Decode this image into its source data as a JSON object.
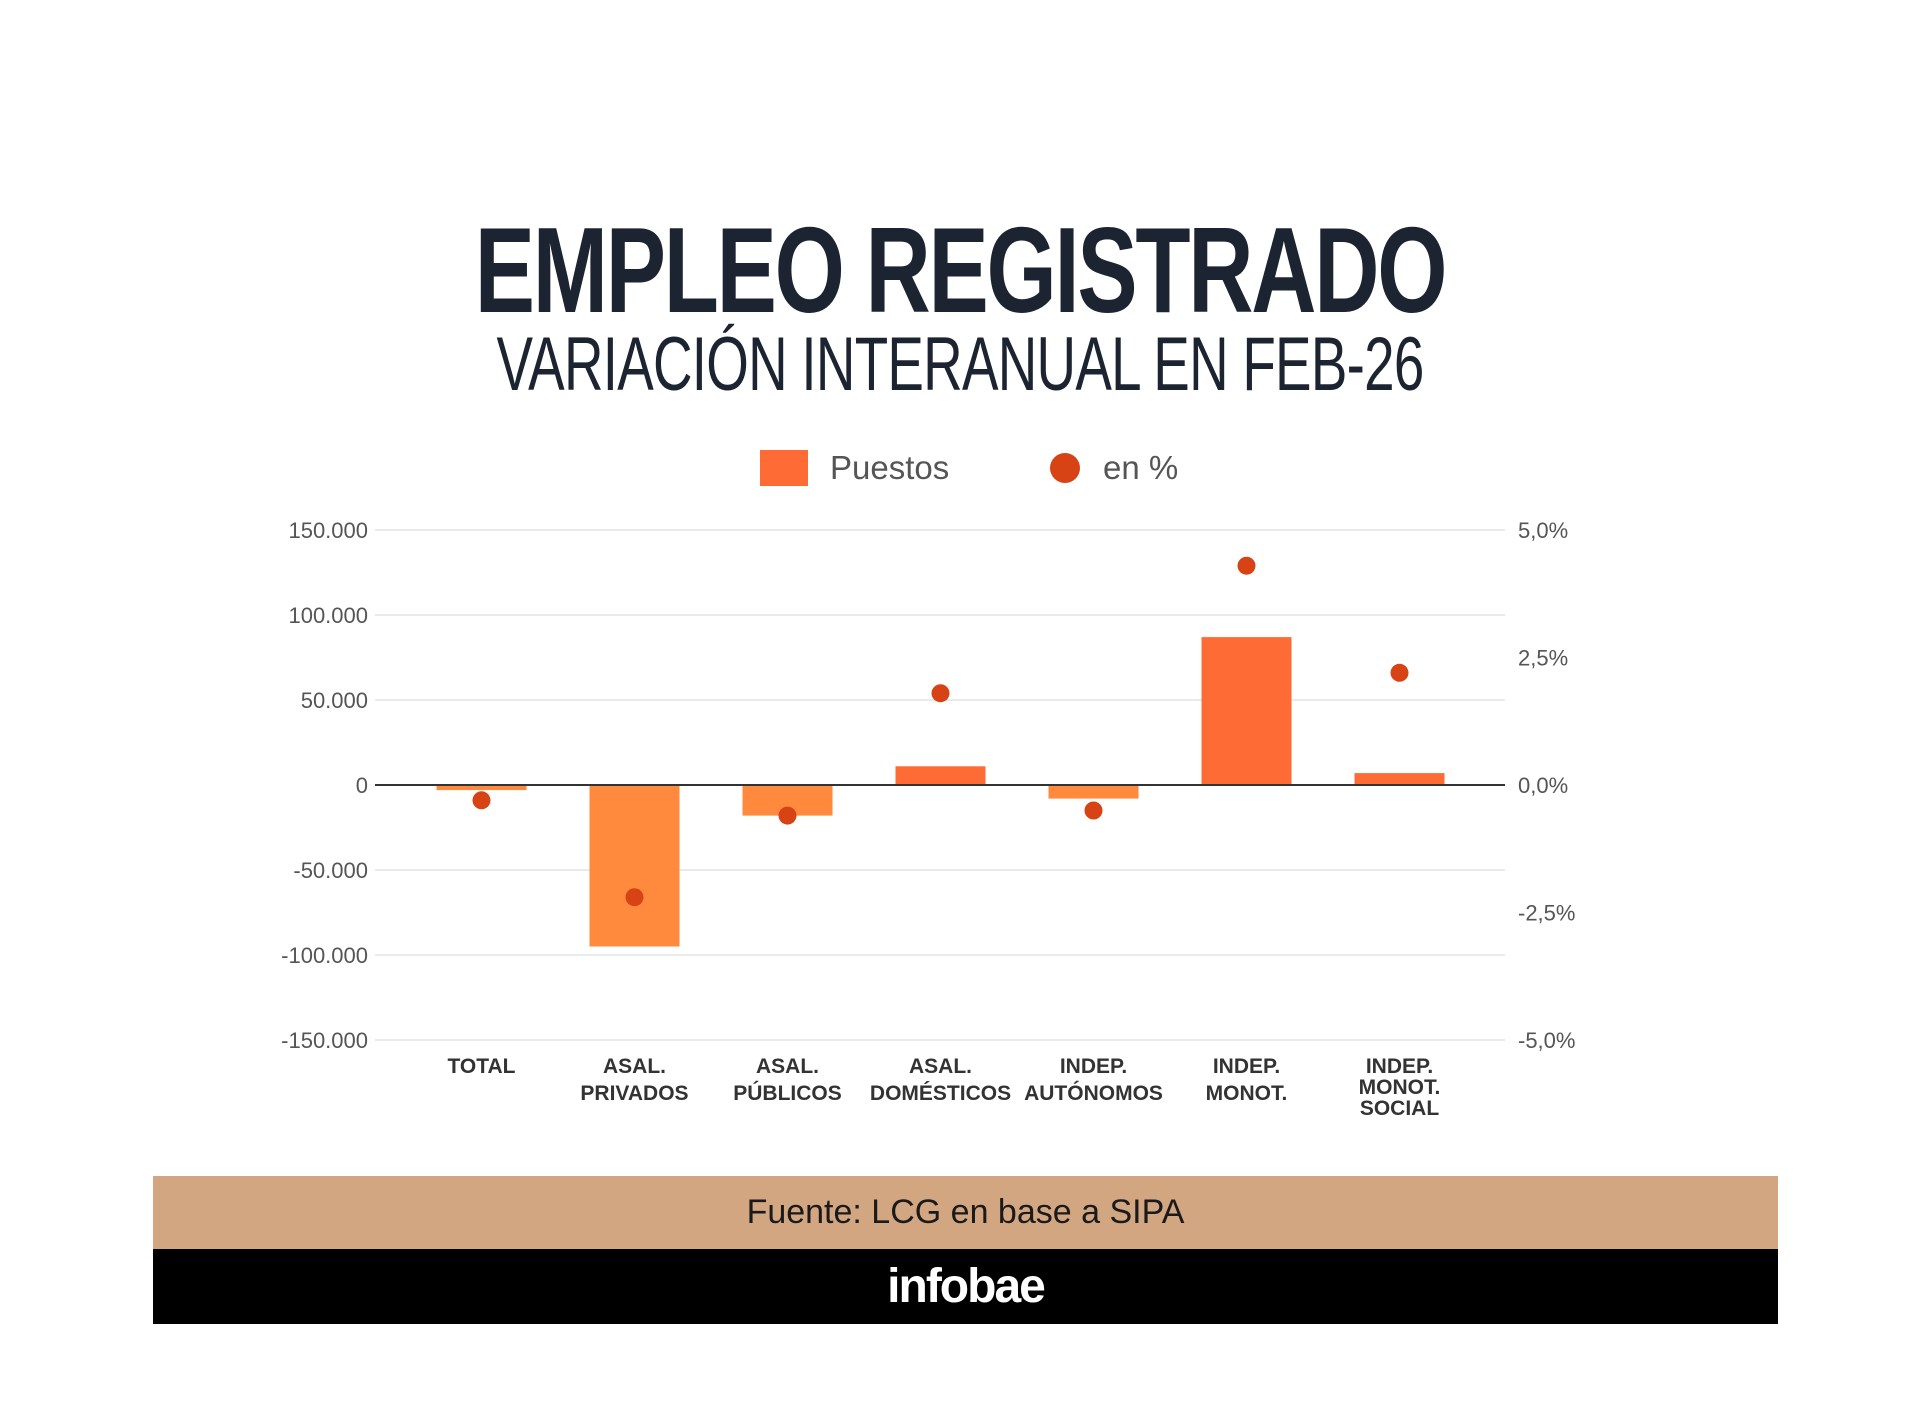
{
  "header": {
    "title": "EMPLEO REGISTRADO",
    "subtitle": "VARIACIÓN INTERANUAL EN FEB-26"
  },
  "legend": {
    "position": "top-center",
    "items": [
      {
        "label": "Puestos",
        "symbol": "square",
        "color": "#ff6b35"
      },
      {
        "label": "en %",
        "symbol": "circle",
        "color": "#d84315"
      }
    ]
  },
  "chart_data": {
    "type": "bar",
    "title": "EMPLEO REGISTRADO",
    "subtitle": "VARIACIÓN INTERANUAL EN FEB-26",
    "categories": [
      [
        "TOTAL"
      ],
      [
        "ASAL.",
        "PRIVADOS"
      ],
      [
        "ASAL.",
        "PÚBLICOS"
      ],
      [
        "ASAL.",
        "DOMÉSTICOS"
      ],
      [
        "INDEP.",
        "AUTÓNOMOS"
      ],
      [
        "INDEP.",
        "MONOT."
      ],
      [
        "INDEP.",
        "MONOT.",
        "SOCIAL"
      ]
    ],
    "series": [
      {
        "name": "Puestos",
        "type": "bar",
        "axis": "left",
        "color": "#ff6b35",
        "values": [
          -3000,
          -95000,
          -18000,
          11000,
          -8000,
          87000,
          7000
        ]
      },
      {
        "name": "en %",
        "type": "scatter",
        "axis": "right",
        "color": "#d84315",
        "values": [
          -0.3,
          -2.2,
          -0.6,
          1.8,
          -0.5,
          4.3,
          2.2
        ]
      }
    ],
    "y_left": {
      "range": [
        -150000,
        150000
      ],
      "ticks": [
        150000,
        100000,
        50000,
        0,
        -50000,
        -100000,
        -150000
      ],
      "tick_labels": [
        "150.000",
        "100.000",
        "50.000",
        "0",
        "-50.000",
        "-100.000",
        "-150.000"
      ]
    },
    "y_right": {
      "range": [
        -5,
        5
      ],
      "ticks": [
        5,
        2.5,
        0,
        -2.5,
        -5
      ],
      "tick_labels": [
        "5,0%",
        "2,5%",
        "0,0%",
        "-2,5%",
        "-5,0%"
      ]
    },
    "grid": true
  },
  "footer": {
    "source": "Fuente: LCG en base a SIPA",
    "brand": "infobae"
  }
}
